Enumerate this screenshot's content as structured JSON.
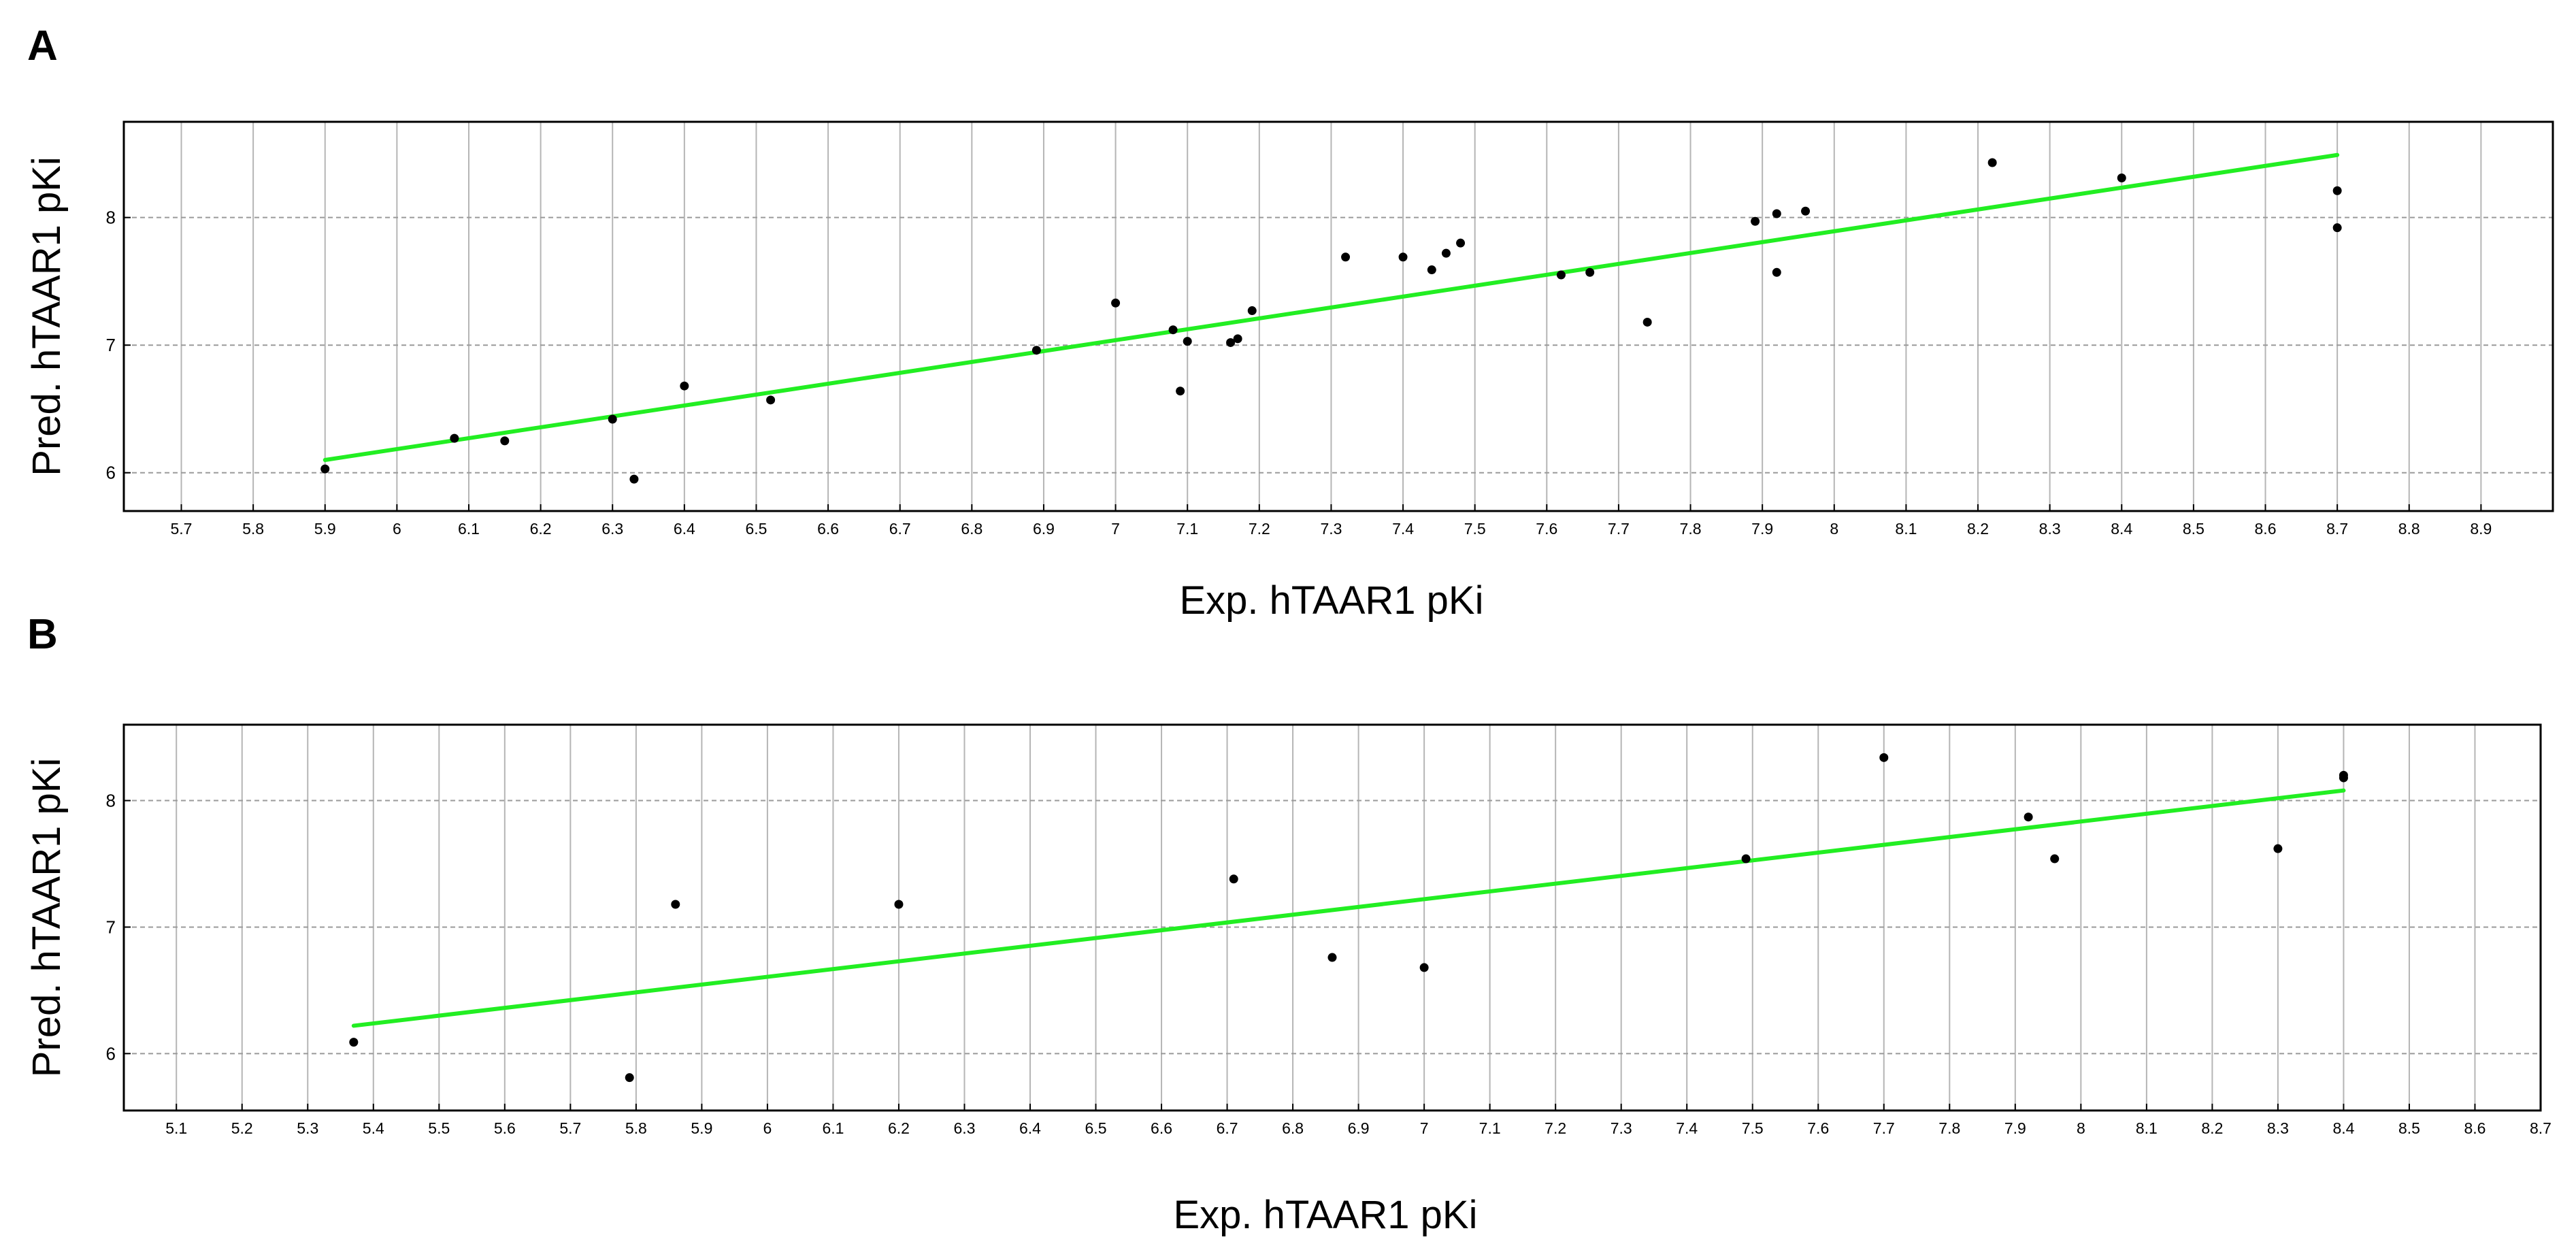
{
  "chart_data": [
    {
      "panel": "A",
      "type": "scatter",
      "xlabel": "Exp. hTAAR1 pKi",
      "ylabel": "Pred. hTAAR1 pKi",
      "xlim": [
        5.62,
        9.0
      ],
      "ylim": [
        5.7,
        8.75
      ],
      "xticks": [
        "5.7",
        "5.8",
        "5.9",
        "6",
        "6.1",
        "6.2",
        "6.3",
        "6.4",
        "6.5",
        "6.6",
        "6.7",
        "6.8",
        "6.9",
        "7",
        "7.1",
        "7.2",
        "7.3",
        "7.4",
        "7.5",
        "7.6",
        "7.7",
        "7.8",
        "7.9",
        "8",
        "8.1",
        "8.2",
        "8.3",
        "8.4",
        "8.5",
        "8.6",
        "8.7",
        "8.8",
        "8.9"
      ],
      "yticks": [
        "6",
        "7",
        "8"
      ],
      "grid": true,
      "points": [
        {
          "x": 5.9,
          "y": 6.03
        },
        {
          "x": 6.08,
          "y": 6.27
        },
        {
          "x": 6.15,
          "y": 6.25
        },
        {
          "x": 6.3,
          "y": 6.42
        },
        {
          "x": 6.33,
          "y": 5.95
        },
        {
          "x": 6.4,
          "y": 6.68
        },
        {
          "x": 6.52,
          "y": 6.57
        },
        {
          "x": 6.89,
          "y": 6.96
        },
        {
          "x": 7.0,
          "y": 7.33
        },
        {
          "x": 7.08,
          "y": 7.12
        },
        {
          "x": 7.09,
          "y": 6.64
        },
        {
          "x": 7.1,
          "y": 7.03
        },
        {
          "x": 7.16,
          "y": 7.02
        },
        {
          "x": 7.17,
          "y": 7.05
        },
        {
          "x": 7.19,
          "y": 7.27
        },
        {
          "x": 7.32,
          "y": 7.69
        },
        {
          "x": 7.4,
          "y": 7.69
        },
        {
          "x": 7.44,
          "y": 7.59
        },
        {
          "x": 7.46,
          "y": 7.72
        },
        {
          "x": 7.48,
          "y": 7.8
        },
        {
          "x": 7.62,
          "y": 7.55
        },
        {
          "x": 7.66,
          "y": 7.57
        },
        {
          "x": 7.74,
          "y": 7.18
        },
        {
          "x": 7.89,
          "y": 7.97
        },
        {
          "x": 7.92,
          "y": 8.03
        },
        {
          "x": 7.92,
          "y": 7.57
        },
        {
          "x": 7.96,
          "y": 8.05
        },
        {
          "x": 8.22,
          "y": 8.43
        },
        {
          "x": 8.4,
          "y": 8.31
        },
        {
          "x": 8.7,
          "y": 8.21
        },
        {
          "x": 8.7,
          "y": 7.92
        }
      ],
      "fit_line": {
        "x": [
          5.9,
          8.7
        ],
        "y": [
          6.1,
          8.49
        ]
      }
    },
    {
      "panel": "B",
      "type": "scatter",
      "xlabel": "Exp. hTAAR1 pKi",
      "ylabel": "Pred. hTAAR1 pKi",
      "xlim": [
        5.02,
        8.7
      ],
      "ylim": [
        5.55,
        8.6
      ],
      "xticks": [
        "5.1",
        "5.2",
        "5.3",
        "5.4",
        "5.5",
        "5.6",
        "5.7",
        "5.8",
        "5.9",
        "6",
        "6.1",
        "6.2",
        "6.3",
        "6.4",
        "6.5",
        "6.6",
        "6.7",
        "6.8",
        "6.9",
        "7",
        "7.1",
        "7.2",
        "7.3",
        "7.4",
        "7.5",
        "7.6",
        "7.7",
        "7.8",
        "7.9",
        "8",
        "8.1",
        "8.2",
        "8.3",
        "8.4",
        "8.5",
        "8.6",
        "8.7"
      ],
      "yticks": [
        "6",
        "7",
        "8"
      ],
      "grid": true,
      "points": [
        {
          "x": 5.37,
          "y": 6.09
        },
        {
          "x": 5.79,
          "y": 5.81
        },
        {
          "x": 5.86,
          "y": 7.18
        },
        {
          "x": 6.2,
          "y": 7.18
        },
        {
          "x": 6.71,
          "y": 7.38
        },
        {
          "x": 6.86,
          "y": 6.76
        },
        {
          "x": 7.0,
          "y": 6.68
        },
        {
          "x": 7.49,
          "y": 7.54
        },
        {
          "x": 7.7,
          "y": 8.34
        },
        {
          "x": 7.92,
          "y": 7.87
        },
        {
          "x": 7.96,
          "y": 7.54
        },
        {
          "x": 8.3,
          "y": 7.62
        },
        {
          "x": 8.4,
          "y": 8.2
        },
        {
          "x": 8.4,
          "y": 8.18
        }
      ],
      "fit_line": {
        "x": [
          5.37,
          8.4
        ],
        "y": [
          6.22,
          8.08
        ]
      }
    }
  ]
}
